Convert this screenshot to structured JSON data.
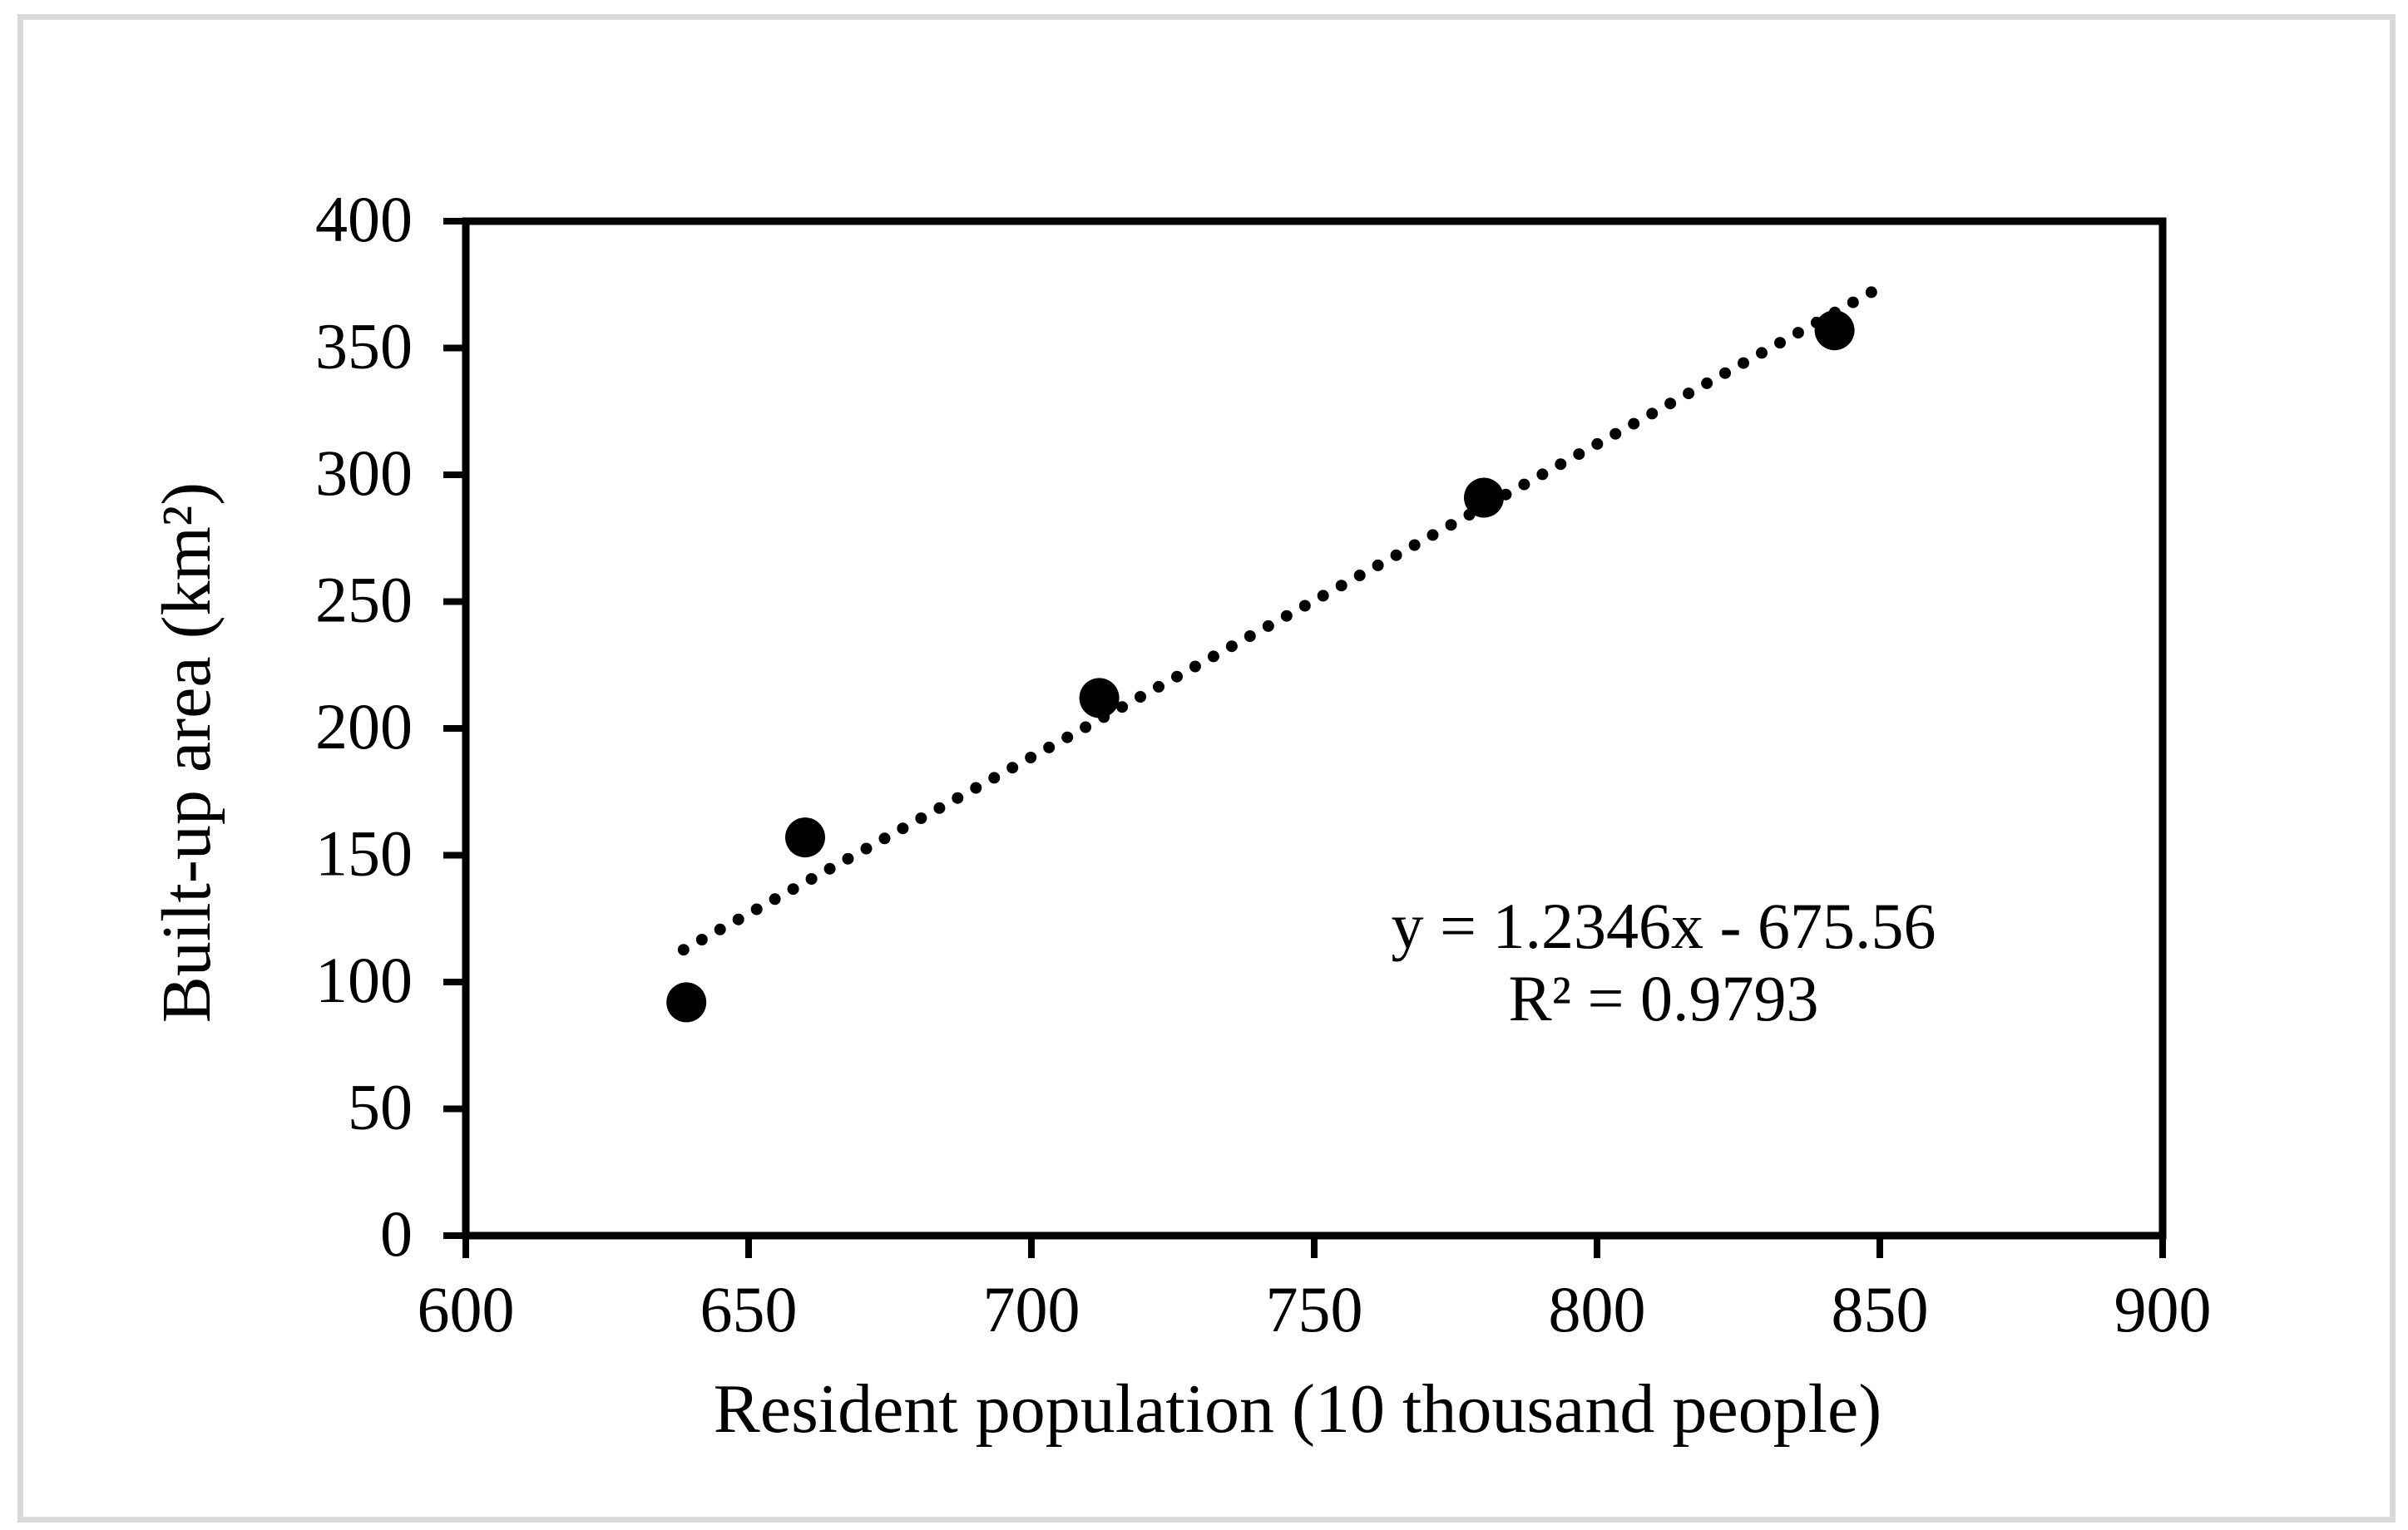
{
  "figure": {
    "background_color": "#ffffff",
    "border_color": "#d9d9d9",
    "text_color": "#000000"
  },
  "chart_data": {
    "type": "scatter",
    "title": "",
    "xlabel": "Resident population (10 thousand people)",
    "ylabel": "Built-up area (km²)",
    "xlim": [
      600,
      900
    ],
    "ylim": [
      0,
      400
    ],
    "x_ticks": [
      600,
      650,
      700,
      750,
      800,
      850,
      900
    ],
    "y_ticks": [
      0,
      50,
      100,
      150,
      200,
      250,
      300,
      350,
      400
    ],
    "grid": false,
    "legend_position": "none",
    "marker_color": "#000000",
    "points": [
      {
        "x": 639,
        "y": 92
      },
      {
        "x": 660,
        "y": 157
      },
      {
        "x": 712,
        "y": 212
      },
      {
        "x": 780,
        "y": 291
      },
      {
        "x": 842,
        "y": 357
      }
    ],
    "trendline": {
      "style": "dotted",
      "color": "#000000",
      "slope": 1.2346,
      "intercept": -675.56,
      "x_start": 638.5,
      "x_end": 848.5,
      "equation_label": "y = 1.2346x - 675.56",
      "r2_label": "R² = 0.9793"
    }
  }
}
